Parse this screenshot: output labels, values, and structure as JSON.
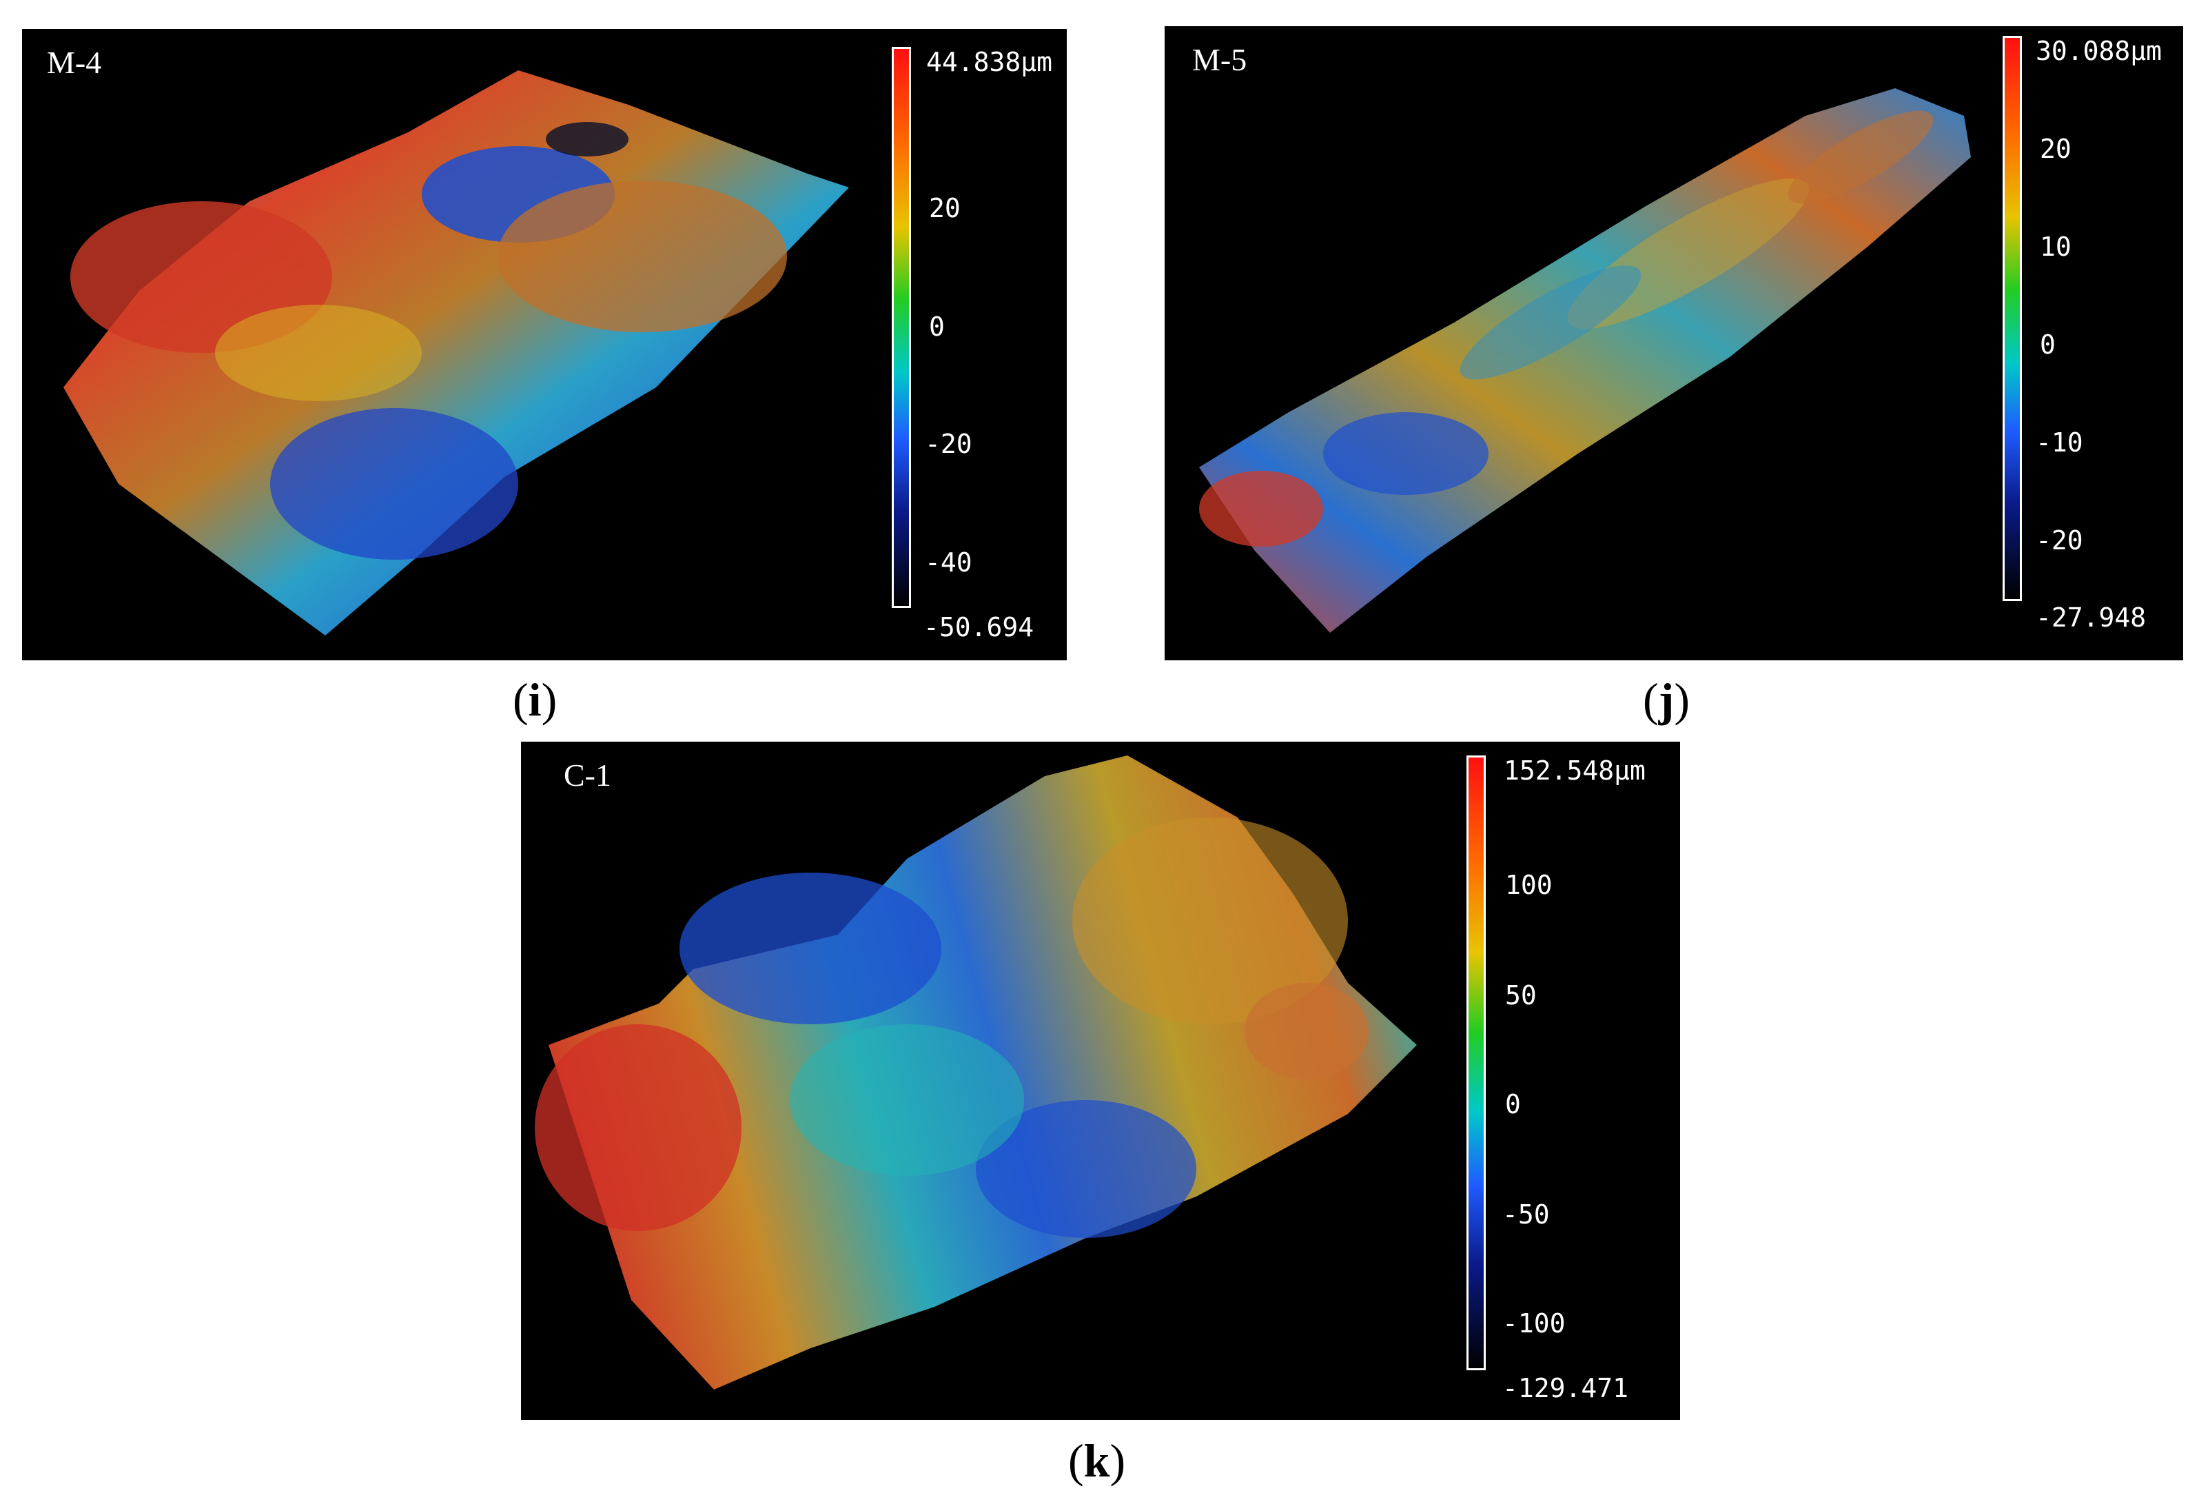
{
  "panels": [
    {
      "sample": "M-4",
      "caption_open": "(",
      "caption_letter": "i",
      "caption_close": ")",
      "scale_ticks": [
        "44.838µm",
        "20",
        "0",
        "-20",
        "-40",
        "-50.694"
      ]
    },
    {
      "sample": "M-5",
      "caption_open": "(",
      "caption_letter": "j",
      "caption_close": ")",
      "scale_ticks": [
        "30.088µm",
        "20",
        "10",
        "0",
        "-10",
        "-20",
        "-27.948"
      ]
    },
    {
      "sample": "C-1",
      "caption_open": "(",
      "caption_letter": "k",
      "caption_close": ")",
      "scale_ticks": [
        "152.548µm",
        "100",
        "50",
        "0",
        "-50",
        "-100",
        "-129.471"
      ]
    }
  ],
  "colormap": [
    "#ff1010",
    "#ff6a00",
    "#e8c400",
    "#22cc22",
    "#00c8c8",
    "#1e5cff",
    "#0a1a8a",
    "#000000"
  ]
}
